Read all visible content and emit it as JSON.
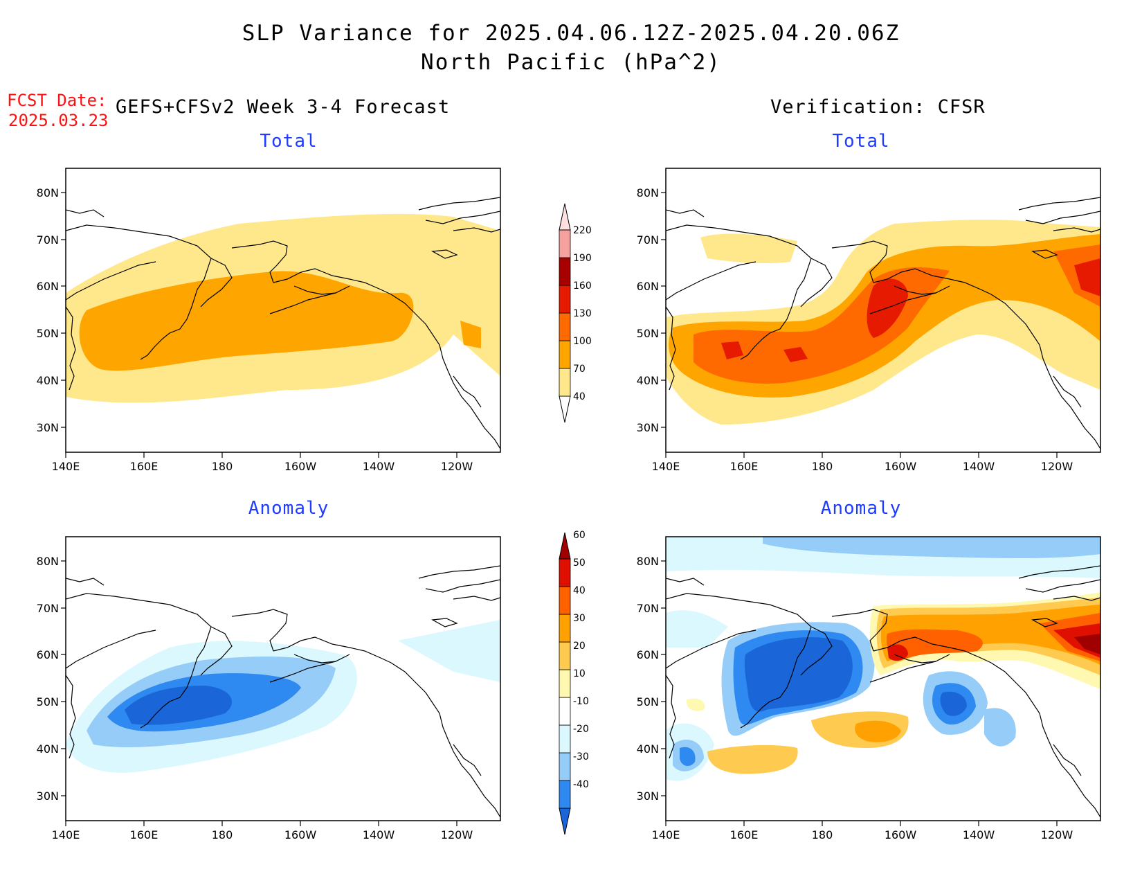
{
  "title": {
    "line1": "SLP Variance for 2025.04.06.12Z-2025.04.20.06Z",
    "line2": "North Pacific (hPa^2)"
  },
  "fcst_date": {
    "label": "FCST Date:",
    "value": "2025.03.23"
  },
  "left_header": "GEFS+CFSv2 Week 3-4 Forecast",
  "right_header": "Verification: CFSR",
  "panel_titles": {
    "total": "Total",
    "anomaly": "Anomaly"
  },
  "axes": {
    "lat_labels": [
      "80N",
      "70N",
      "60N",
      "50N",
      "40N",
      "30N"
    ],
    "lon_labels": [
      "140E",
      "160E",
      "180",
      "160W",
      "140W",
      "120W"
    ]
  },
  "colorbars": {
    "total": {
      "levels": [
        "40",
        "70",
        "100",
        "130",
        "160",
        "190",
        "220"
      ],
      "colors": [
        "#ffffff",
        "#ffe88c",
        "#ffa500",
        "#ff6a00",
        "#e61a00",
        "#a80000",
        "#f6a0a0",
        "#ffe0e0"
      ]
    },
    "anomaly": {
      "levels": [
        "-40",
        "-30",
        "-20",
        "-10",
        "10",
        "20",
        "30",
        "40",
        "50",
        "60"
      ],
      "colors": [
        "#1a66d8",
        "#2e8af0",
        "#96ccf8",
        "#dcf8ff",
        "#ffffff",
        "#fff8b0",
        "#ffca50",
        "#ffa100",
        "#ff6000",
        "#e01000",
        "#a00000"
      ]
    }
  },
  "chart_data": [
    {
      "type": "heatmap",
      "panel": "GEFS+CFSv2 Week 3-4 Forecast - Total",
      "units": "hPa^2",
      "lon_range": [
        "140E",
        "110W"
      ],
      "lat_range": [
        "25N",
        "85N"
      ],
      "features": [
        {
          "level": "40-70",
          "region": "broad band 35N-72N across the basin"
        },
        {
          "level": "70-100",
          "center_lon": "175E",
          "center_lat": 50,
          "region": "40N-57N, 145E-145W"
        }
      ]
    },
    {
      "type": "heatmap",
      "panel": "Verification: CFSR - Total",
      "units": "hPa^2",
      "lon_range": [
        "140E",
        "110W"
      ],
      "lat_range": [
        "25N",
        "85N"
      ],
      "features": [
        {
          "level": "130-160",
          "location": "Gulf of Alaska ~160W 55N"
        },
        {
          "level": "130-160",
          "location": "NE corner ~115W 60N"
        },
        {
          "level": "100-130",
          "location": "band 40N-50N, 145E-170W"
        }
      ]
    },
    {
      "type": "heatmap",
      "panel": "GEFS+CFSv2 Week 3-4 Forecast - Anomaly",
      "units": "hPa^2",
      "lon_range": [
        "140E",
        "110W"
      ],
      "lat_range": [
        "25N",
        "85N"
      ],
      "features": [
        {
          "level": "-40 to -30",
          "center_lon": "165E",
          "center_lat": 47
        },
        {
          "level": "-30 to -20",
          "region": "42N-55N, 150E-165W"
        }
      ]
    },
    {
      "type": "heatmap",
      "panel": "Verification: CFSR - Anomaly",
      "units": "hPa^2",
      "lon_range": [
        "140E",
        "110W"
      ],
      "lat_range": [
        "25N",
        "85N"
      ],
      "features": [
        {
          "level": "< -40",
          "location": "Bering Sea / NW Pacific ~180 55N"
        },
        {
          "level": "-40 to -30",
          "location": "~140W 48N"
        },
        {
          "level": "40-60",
          "location": "Gulf of Alaska ~160W 58N"
        },
        {
          "level": "> 60",
          "location": "NE corner ~115W 58N"
        },
        {
          "level": "20-40",
          "location": "~170W 40N and ~165E 35N"
        }
      ]
    }
  ]
}
